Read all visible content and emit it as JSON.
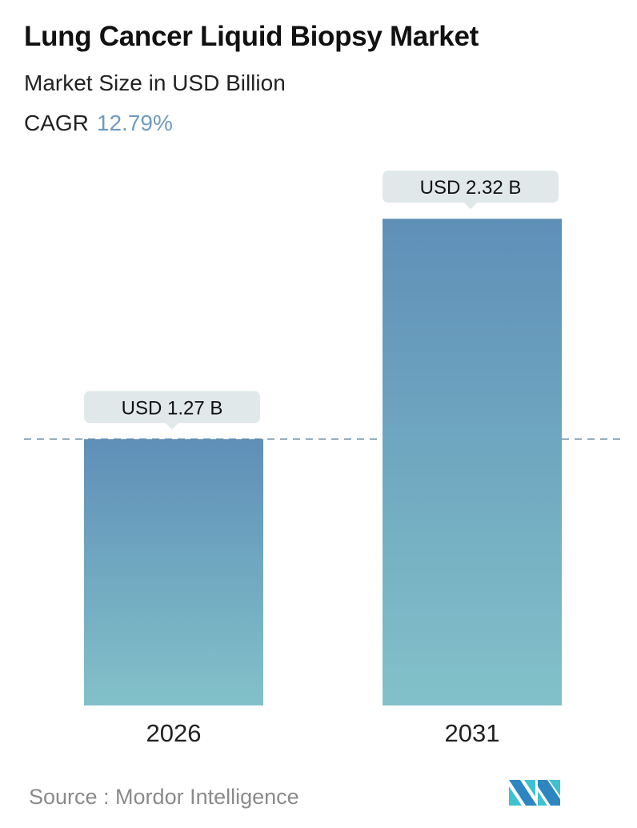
{
  "header": {
    "title": "Lung Cancer Liquid Biopsy Market",
    "subtitle": "Market Size in USD Billion",
    "cagr_label": "CAGR",
    "cagr_value": "12.79%"
  },
  "chart_data": {
    "type": "bar",
    "categories": [
      "2026",
      "2031"
    ],
    "values": [
      1.27,
      2.32
    ],
    "data_labels": [
      "USD 1.27 B",
      "USD 2.32 B"
    ],
    "reference_line": 1.27,
    "ylim": [
      0,
      2.5
    ],
    "grid": false,
    "colors": {
      "bar_top": "#5f8fb8",
      "bar_bottom": "#82c1c9",
      "callout": "#e1e8ea",
      "cagr": "#6e9bbf",
      "dash": "#6e8fa8"
    }
  },
  "footer": {
    "source": "Source :  Mordor Intelligence",
    "logo_text": "Mordor Intelligence"
  }
}
